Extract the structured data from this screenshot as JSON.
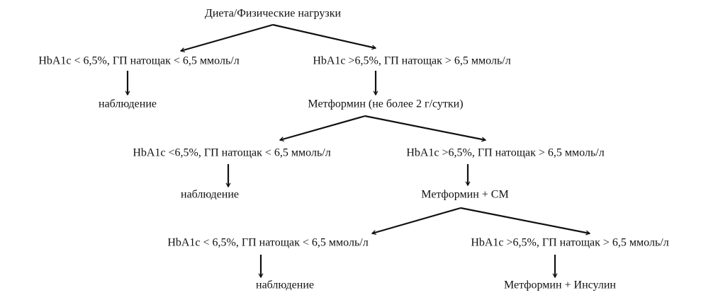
{
  "nodes": [
    {
      "label": "Диета/Физические нагрузки"
    },
    {
      "label": "HbA1c < 6,5%, ГП натощак < 6,5 ммоль/л"
    },
    {
      "label": "HbA1c >6,5%, ГП натощак > 6,5 ммоль/л"
    },
    {
      "label": "наблюдение"
    },
    {
      "label": "Метформин (не более 2 г/сутки)"
    },
    {
      "label": "HbA1c <6,5%, ГП натощак < 6,5 ммоль/л"
    },
    {
      "label": "HbA1c >6,5%, ГП натощак > 6,5 ммоль/л"
    },
    {
      "label": "наблюдение"
    },
    {
      "label": "Метформин + СМ"
    },
    {
      "label": "HbA1c < 6,5%, ГП натощак < 6,5 ммоль/л"
    },
    {
      "label": "HbA1c >6,5%, ГП натощак > 6,5 ммоль/л"
    },
    {
      "label": "наблюдение"
    },
    {
      "label": "Метформин + Инсулин"
    }
  ]
}
